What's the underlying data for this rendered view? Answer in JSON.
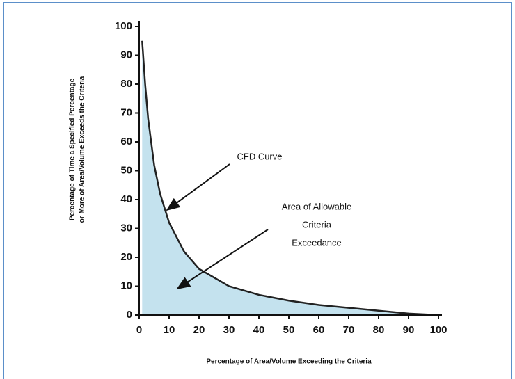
{
  "chart_data": {
    "type": "area",
    "x_label": "Percentage of Area/Volume Exceeding the Criteria",
    "y_label": [
      "Percentage of Time a Specified Percentage",
      "or More of Area/Volume Exceeds the Criteria"
    ],
    "series": [
      {
        "name": "CFD Curve",
        "color": "#c4e2ee",
        "line_color": "#222222",
        "x": [
          1,
          2,
          3,
          5,
          7,
          10,
          15,
          20,
          30,
          40,
          50,
          60,
          70,
          80,
          90,
          100
        ],
        "values": [
          95,
          80,
          68,
          52,
          42,
          32,
          22,
          16,
          10,
          7,
          5,
          3.5,
          2.5,
          1.5,
          0.5,
          0
        ]
      }
    ],
    "annotations": [
      {
        "lines": [
          "CFD Curve"
        ]
      },
      {
        "lines": [
          "Area of Allowable",
          "Criteria",
          "Exceedance"
        ]
      }
    ],
    "xlim": [
      0,
      100
    ],
    "ylim": [
      0,
      100
    ],
    "xticks": [
      0,
      10,
      20,
      30,
      40,
      50,
      60,
      70,
      80,
      90,
      100
    ],
    "yticks": [
      0,
      10,
      20,
      30,
      40,
      50,
      60,
      70,
      80,
      90,
      100
    ]
  }
}
